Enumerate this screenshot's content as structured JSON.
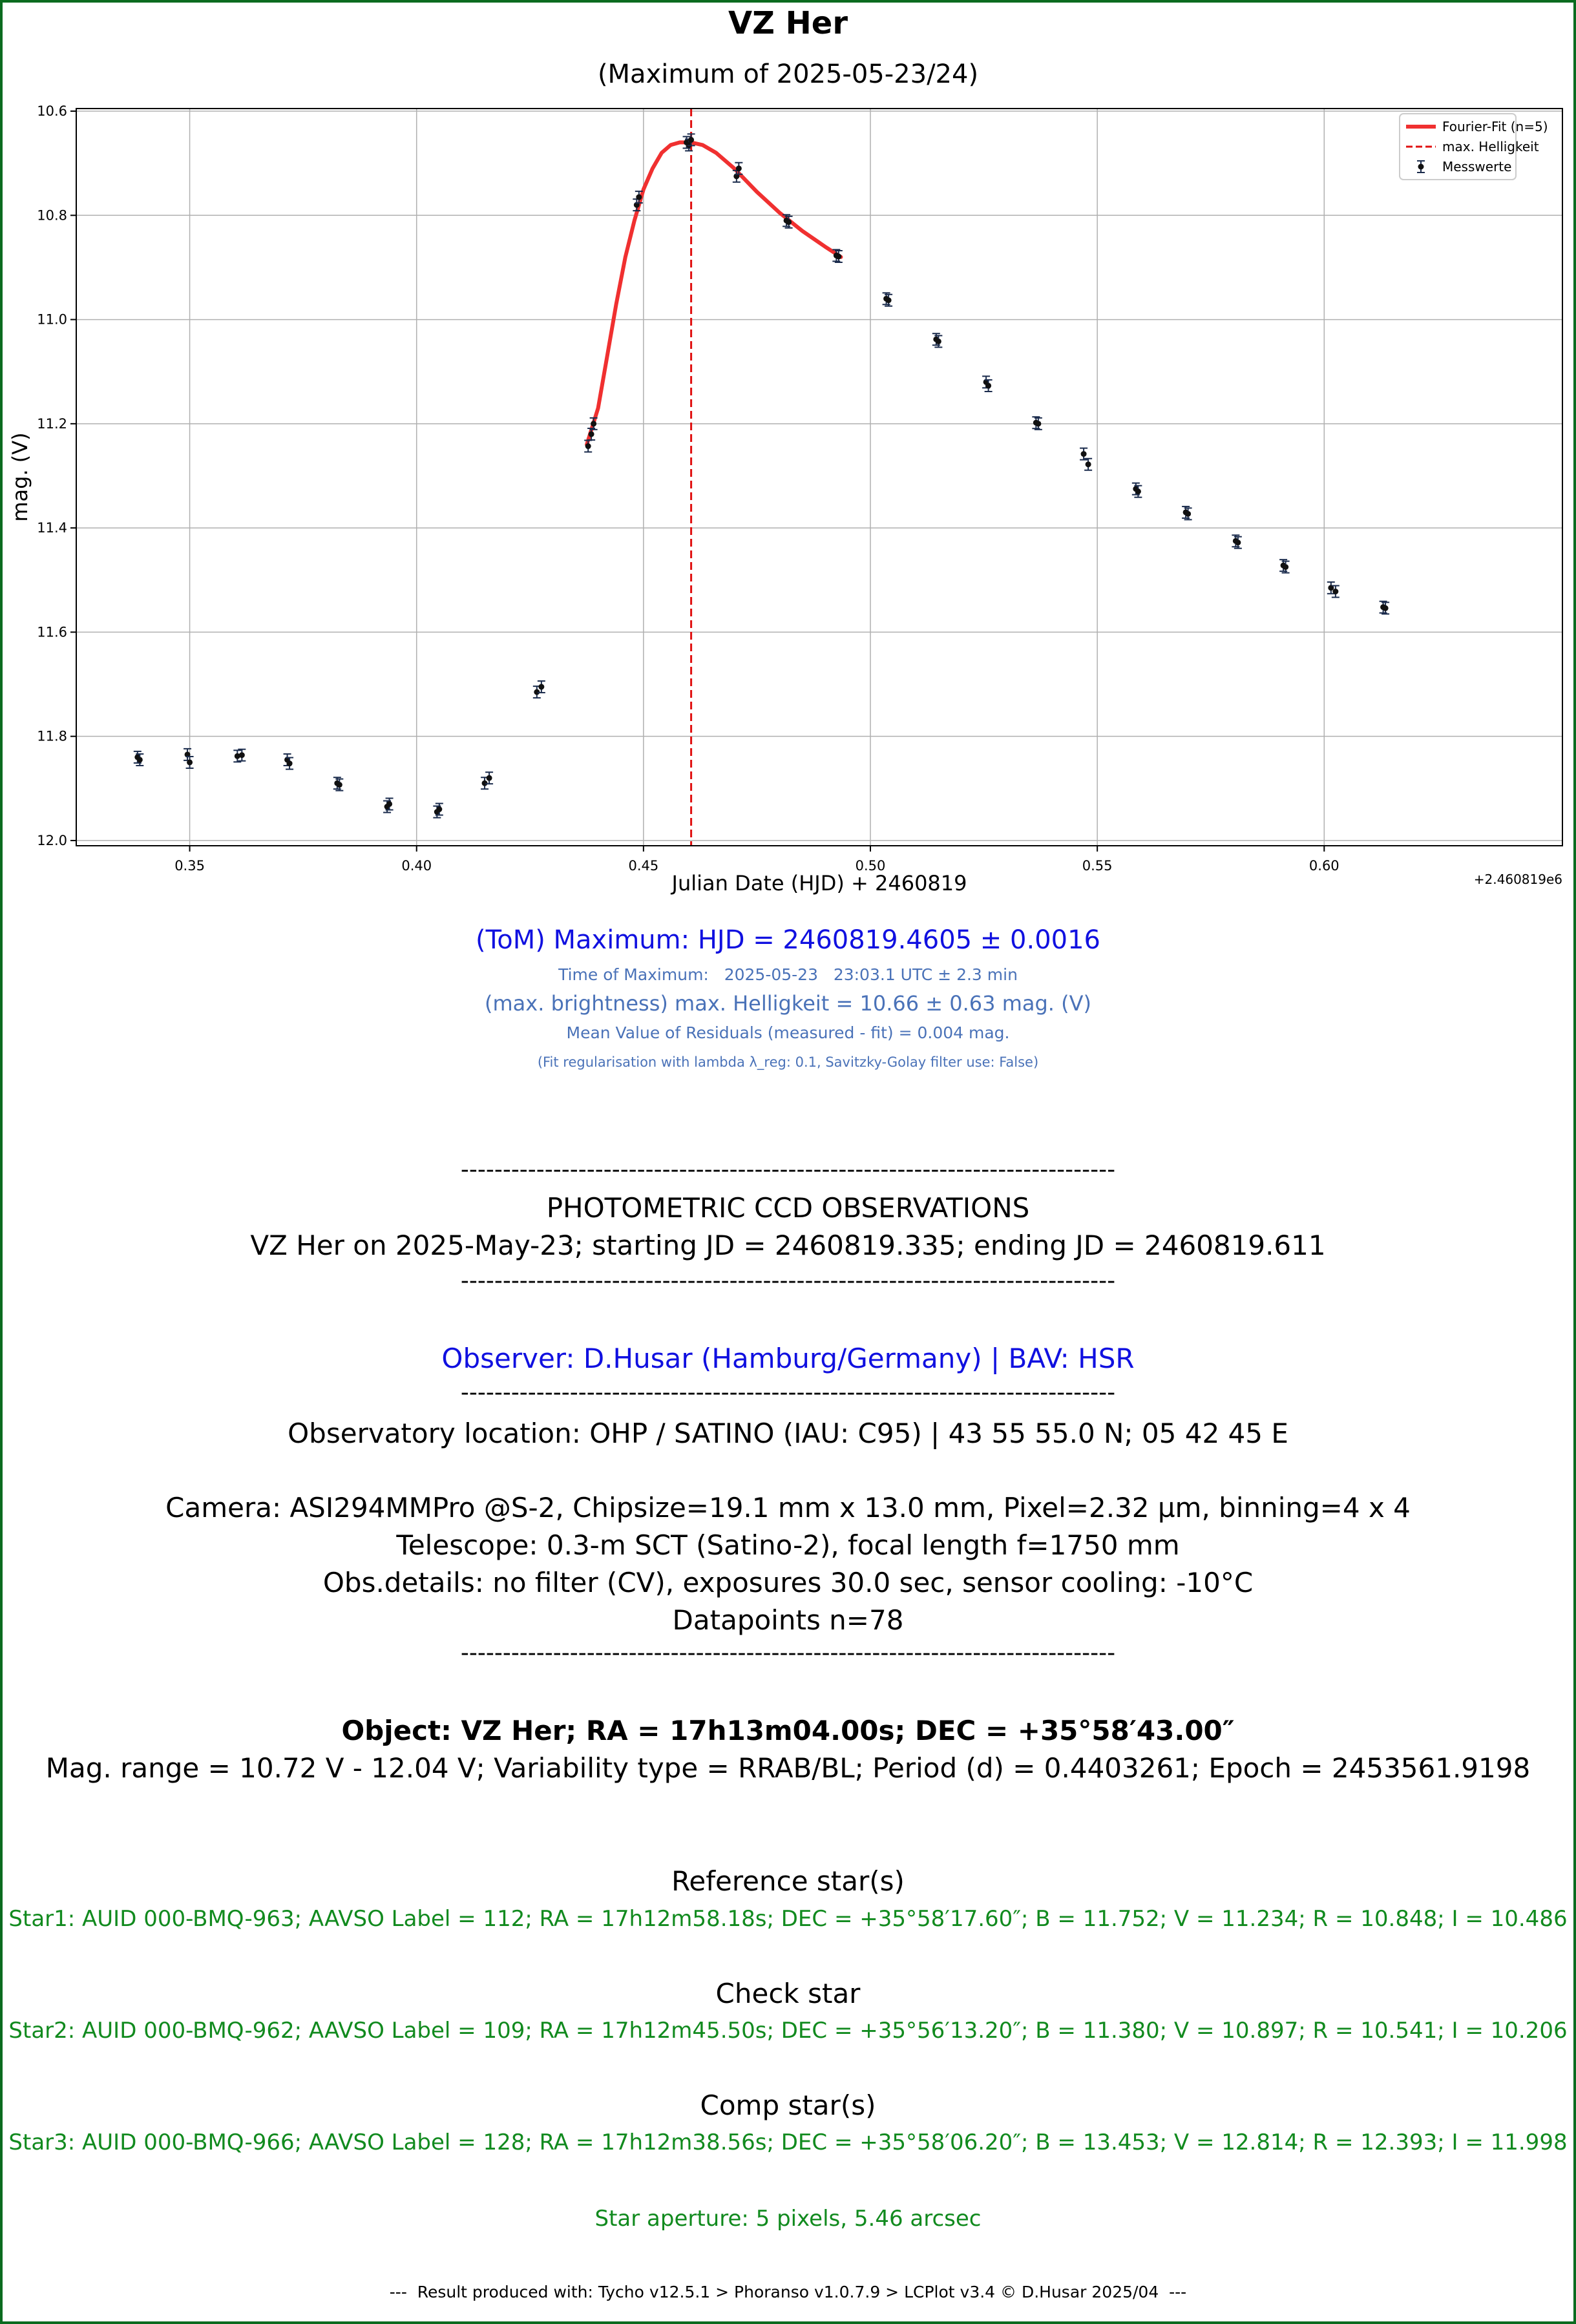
{
  "chart_data": {
    "type": "scatter",
    "title": "VZ Her",
    "subtitle": "(Maximum of 2025-05-23/24)",
    "xlabel": "Julian Date (HJD) + 2460819",
    "ylabel": "mag. (V)",
    "x_offset_label": "+2.460819e6",
    "xlim": [
      0.325,
      0.6525
    ],
    "ylim": [
      12.01,
      10.595
    ],
    "y_inverted": true,
    "grid": true,
    "legend_position": "top-right",
    "xticks": [
      0.35,
      0.4,
      0.45,
      0.5,
      0.55,
      0.6
    ],
    "xtick_labels": [
      "0.35",
      "0.40",
      "0.45",
      "0.50",
      "0.55",
      "0.60"
    ],
    "yticks": [
      10.6,
      10.8,
      11.0,
      11.2,
      11.4,
      11.6,
      11.8,
      12.0
    ],
    "ytick_labels": [
      "10.6",
      "10.8",
      "11.0",
      "11.2",
      "11.4",
      "11.6",
      "11.8",
      "12.0"
    ],
    "legend": [
      {
        "label": "Fourier-Fit (n=5)",
        "style": "line",
        "color": "#f03030"
      },
      {
        "label": "max. Helligkeit",
        "style": "dashed",
        "color": "#e01010"
      },
      {
        "label": "Messwerte",
        "style": "errorbar",
        "color": "#1a2b4c"
      }
    ],
    "max_line_x": 0.4605,
    "fit_curve": {
      "x": [
        0.4375,
        0.44,
        0.442,
        0.444,
        0.446,
        0.448,
        0.45,
        0.452,
        0.454,
        0.456,
        0.458,
        0.4605,
        0.463,
        0.466,
        0.47,
        0.475,
        0.48,
        0.485,
        0.49,
        0.4935
      ],
      "y": [
        11.24,
        11.17,
        11.07,
        10.97,
        10.88,
        10.81,
        10.75,
        10.71,
        10.68,
        10.665,
        10.66,
        10.66,
        10.665,
        10.68,
        10.71,
        10.755,
        10.795,
        10.83,
        10.86,
        10.88
      ]
    },
    "series": [
      {
        "name": "Messwerte",
        "x": [
          0.3385,
          0.339,
          0.3495,
          0.35,
          0.3605,
          0.3615,
          0.3715,
          0.372,
          0.3825,
          0.383,
          0.3935,
          0.394,
          0.4045,
          0.405,
          0.415,
          0.416,
          0.4265,
          0.4275,
          0.4378,
          0.4385,
          0.439,
          0.4485,
          0.449,
          0.4595,
          0.46,
          0.4605,
          0.4705,
          0.471,
          0.4815,
          0.482,
          0.4925,
          0.493,
          0.5035,
          0.504,
          0.5145,
          0.515,
          0.5255,
          0.526,
          0.5365,
          0.537,
          0.547,
          0.548,
          0.5585,
          0.559,
          0.5695,
          0.57,
          0.5805,
          0.581,
          0.591,
          0.5915,
          0.6015,
          0.6025,
          0.613,
          0.6135
        ],
        "y": [
          11.84,
          11.845,
          11.835,
          11.85,
          11.838,
          11.836,
          11.845,
          11.852,
          11.89,
          11.893,
          11.935,
          11.93,
          11.945,
          11.94,
          11.89,
          11.88,
          11.715,
          11.705,
          11.243,
          11.22,
          11.2,
          10.78,
          10.765,
          10.66,
          10.665,
          10.655,
          10.725,
          10.71,
          10.81,
          10.813,
          10.877,
          10.879,
          10.96,
          10.963,
          11.038,
          11.042,
          11.12,
          11.127,
          11.198,
          11.2,
          11.258,
          11.278,
          11.325,
          11.33,
          11.37,
          11.373,
          11.425,
          11.428,
          11.472,
          11.475,
          11.515,
          11.522,
          11.552,
          11.554
        ]
      }
    ]
  },
  "result": {
    "tom_line": "(ToM) Maximum: HJD = 2460819.4605 ± 0.0016",
    "time_line": "Time of Maximum:   2025-05-23   23:03.1 UTC ± 2.3 min",
    "brightness_line": "(max. brightness) max. Helligkeit = 10.66 ± 0.63 mag. (V)",
    "residuals_line": "Mean Value of Residuals (measured - fit) = 0.004 mag.",
    "fit_note": "(Fit regularisation with lambda λ_reg: 0.1, Savitzky-Golay filter use: False)"
  },
  "observations": {
    "rule1": "------------------------------------------------------------------------------",
    "heading": "PHOTOMETRIC CCD OBSERVATIONS",
    "span": "VZ Her on 2025-May-23; starting JD = 2460819.335; ending JD = 2460819.611",
    "rule2": "------------------------------------------------------------------------------",
    "observer": "Observer: D.Husar (Hamburg/Germany) | BAV: HSR",
    "rule3": "------------------------------------------------------------------------------",
    "location": "Observatory location: OHP / SATINO (IAU: C95) | 43 55 55.0 N; 05 42 45 E",
    "camera": "Camera: ASI294MMPro @S-2, Chipsize=19.1 mm x 13.0 mm, Pixel=2.32 µm, binning=4 x 4",
    "telescope": "Telescope: 0.3-m SCT (Satino-2), focal length f=1750 mm",
    "details": "Obs.details: no filter (CV), exposures 30.0 sec, sensor cooling: -10°C",
    "datapoints": "Datapoints n=78",
    "rule4": "------------------------------------------------------------------------------"
  },
  "object": {
    "title": "Object: VZ Her; RA = 17h13m04.00s; DEC = +35°58′43.00″",
    "info": "Mag. range = 10.72 V - 12.04 V; Variability type = RRAB/BL; Period (d) = 0.4403261; Epoch = 2453561.9198"
  },
  "stars": {
    "ref_heading": "Reference star(s)",
    "ref": "Star1: AUID 000-BMQ-963; AAVSO Label = 112; RA = 17h12m58.18s; DEC = +35°58′17.60″; B = 11.752; V = 11.234; R = 10.848; I = 10.486",
    "check_heading": "Check star",
    "check": "Star2: AUID 000-BMQ-962; AAVSO Label = 109; RA = 17h12m45.50s; DEC = +35°56′13.20″; B = 11.380; V = 10.897; R = 10.541; I = 10.206",
    "comp_heading": "Comp star(s)",
    "comp": "Star3: AUID 000-BMQ-966; AAVSO Label = 128; RA = 17h12m38.56s; DEC = +35°58′06.20″; B = 13.453; V = 12.814; R = 12.393; I = 11.998",
    "aperture": "Star aperture: 5 pixels, 5.46 arcsec"
  },
  "footer": "---  Result produced with: Tycho v12.5.1 > Phoranso v1.0.7.9 > LCPlot v3.4 © D.Husar 2025/04  ---",
  "colors": {
    "frame": "#0b6b1f",
    "accent_blue": "#1010e0",
    "muted_blue": "#4a72b8",
    "star_green": "#118a1e",
    "fit_red": "#f03030",
    "marker": "#1a2b4c"
  }
}
